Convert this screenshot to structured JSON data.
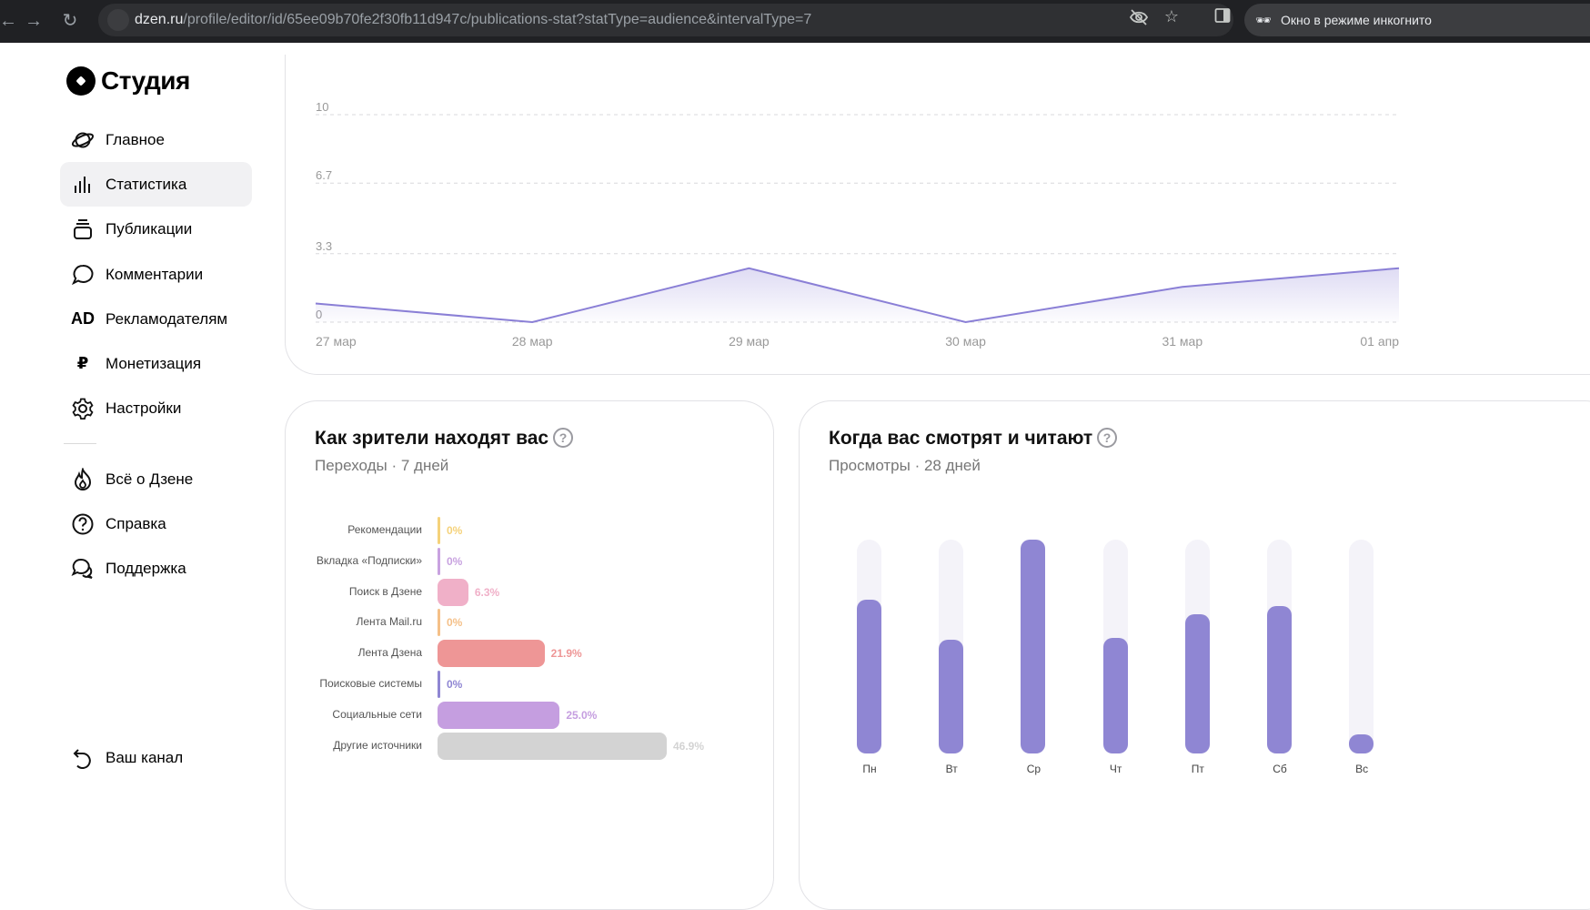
{
  "browser": {
    "url_domain": "dzen.ru",
    "url_path": "/profile/editor/id/65ee09b70fe2f30fb11d947c/publications-stat?statType=audience&intervalType=7",
    "incognito_label": "Окно в режиме инкогнито"
  },
  "header": {
    "logo_text": "Студия"
  },
  "sidebar": {
    "items": [
      {
        "label": "Главное",
        "icon": "planet-icon"
      },
      {
        "label": "Статистика",
        "icon": "bar-stats-icon",
        "active": true
      },
      {
        "label": "Публикации",
        "icon": "stack-icon"
      },
      {
        "label": "Комментарии",
        "icon": "comment-icon"
      },
      {
        "label": "Рекламодателям",
        "icon": "ad-icon",
        "icon_text": "AD"
      },
      {
        "label": "Монетизация",
        "icon": "ruble-icon",
        "icon_text": "₽"
      },
      {
        "label": "Настройки",
        "icon": "gear-icon"
      }
    ],
    "secondary": [
      {
        "label": "Всё о Дзене",
        "icon": "flame-icon"
      },
      {
        "label": "Справка",
        "icon": "help-icon"
      },
      {
        "label": "Поддержка",
        "icon": "chat-icon"
      }
    ],
    "bottom": {
      "label": "Ваш канал",
      "icon": "back-arrow-icon"
    }
  },
  "line_chart": {
    "y_ticks": [
      "10",
      "6.7",
      "3.3",
      "0"
    ],
    "x_labels": [
      "27 мар",
      "28 мар",
      "29 мар",
      "30 мар",
      "31 мар",
      "01 апр"
    ],
    "series_color": "#8a7fd6"
  },
  "sources_card": {
    "title": "Как зрители находят вас",
    "subtitle": "Переходы · 7 дней",
    "items": [
      {
        "label": "Рекомендации",
        "value": "0%",
        "percent": 0,
        "color": "#f5d27a"
      },
      {
        "label": "Вкладка «Подписки»",
        "value": "0%",
        "percent": 0,
        "color": "#c8a2e0"
      },
      {
        "label": "Поиск в Дзене",
        "value": "6.3%",
        "percent": 6.3,
        "color": "#f0b0c8"
      },
      {
        "label": "Лента Mail.ru",
        "value": "0%",
        "percent": 0,
        "color": "#f5c088"
      },
      {
        "label": "Лента Дзена",
        "value": "21.9%",
        "percent": 21.9,
        "color": "#ee9696"
      },
      {
        "label": "Поисковые системы",
        "value": "0%",
        "percent": 0,
        "color": "#8f86d3"
      },
      {
        "label": "Социальные сети",
        "value": "25.0%",
        "percent": 25.0,
        "color": "#c59ee0"
      },
      {
        "label": "Другие источники",
        "value": "46.9%",
        "percent": 46.9,
        "color": "#d3d3d3"
      }
    ]
  },
  "when_card": {
    "title": "Когда вас смотрят и читают",
    "subtitle": "Просмотры · 28 дней",
    "days": [
      {
        "label": "Пн",
        "value": 0.72
      },
      {
        "label": "Вт",
        "value": 0.53
      },
      {
        "label": "Ср",
        "value": 1.0
      },
      {
        "label": "Чт",
        "value": 0.54
      },
      {
        "label": "Пт",
        "value": 0.65
      },
      {
        "label": "Сб",
        "value": 0.69
      },
      {
        "label": "Вс",
        "value": 0.09
      }
    ]
  },
  "chart_data": {
    "type": "line",
    "x": [
      "27 мар",
      "28 мар",
      "29 мар",
      "30 мар",
      "31 мар",
      "01 апр"
    ],
    "series": [
      {
        "values": [
          0.9,
          0.0,
          2.6,
          0.0,
          1.7,
          2.6
        ]
      }
    ],
    "ylim": [
      0,
      10
    ],
    "y_ticks": [
      0,
      3.3,
      6.7,
      10
    ],
    "grid": true
  }
}
